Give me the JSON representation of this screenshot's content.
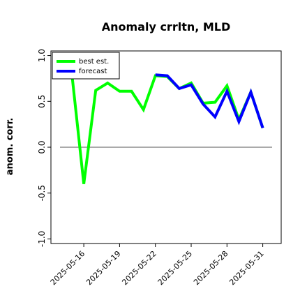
{
  "chart_data": {
    "type": "line",
    "title": "Anomaly crrltn, MLD",
    "xlabel": "",
    "ylabel": "anom. corr.",
    "ylim": [
      -1.05,
      1.05
    ],
    "yticks": [
      1.0,
      0.5,
      0.0,
      -0.5,
      -1.0
    ],
    "ytick_labels": [
      "1.0",
      "0.5",
      "0.0",
      "-0.5",
      "-1.0"
    ],
    "x": [
      "2025-05-15",
      "2025-05-16",
      "2025-05-17",
      "2025-05-18",
      "2025-05-19",
      "2025-05-20",
      "2025-05-21",
      "2025-05-22",
      "2025-05-23",
      "2025-05-24",
      "2025-05-25",
      "2025-05-26",
      "2025-05-27",
      "2025-05-28",
      "2025-05-29",
      "2025-05-30",
      "2025-05-31"
    ],
    "xticks": [
      "2025-05-16",
      "2025-05-19",
      "2025-05-22",
      "2025-05-25",
      "2025-05-28",
      "2025-05-31"
    ],
    "xtick_colors": [
      "#000000",
      "#000000",
      "#228b22",
      "#000000",
      "#000000",
      "#000000"
    ],
    "reference_line": 0.0,
    "grid": false,
    "legend_position": "upper-left",
    "series": [
      {
        "name": "best est.",
        "color": "#00ff00",
        "values": [
          0.8,
          -0.4,
          0.62,
          0.7,
          0.61,
          0.61,
          0.41,
          0.78,
          0.77,
          0.64,
          0.7,
          0.48,
          0.49,
          0.67,
          0.3,
          0.6,
          0.21
        ]
      },
      {
        "name": "forecast",
        "color": "#0000ff",
        "start_index": 7,
        "values": [
          null,
          null,
          null,
          null,
          null,
          null,
          null,
          0.79,
          0.78,
          0.64,
          0.68,
          0.47,
          0.33,
          0.61,
          0.28,
          0.6,
          0.21
        ]
      }
    ]
  }
}
